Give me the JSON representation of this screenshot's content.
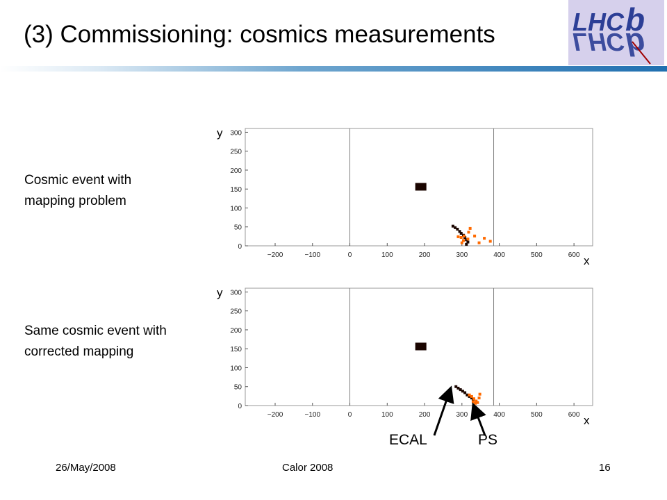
{
  "title": "(3) Commissioning: cosmics measurements",
  "colors": {
    "ecal_hit": "#1a0500",
    "ps_hit": "#ff6a00",
    "frame": "#999999",
    "accent": "#1f6fb0",
    "logo_bg": "#d6d0ec",
    "logo_text": "#2c3e96"
  },
  "logo": {
    "text": "LHCb"
  },
  "captions": {
    "top": [
      "Cosmic event with",
      "mapping problem"
    ],
    "bottom": [
      "Same cosmic event with",
      "corrected mapping"
    ]
  },
  "axis_letters": {
    "x": "x",
    "y": "y"
  },
  "annotations": {
    "ecal": "ECAL",
    "ps": "PS"
  },
  "footer": {
    "date": "26/May/2008",
    "conference": "Calor 2008",
    "page": "16"
  },
  "chart_data": [
    {
      "type": "scatter",
      "xlabel": "x",
      "ylabel": "y",
      "xlim": [
        -280,
        650
      ],
      "ylim": [
        0,
        310
      ],
      "xticks": [
        -200,
        -100,
        0,
        100,
        200,
        300,
        400,
        500,
        600
      ],
      "yticks": [
        0,
        50,
        100,
        150,
        200,
        250,
        300
      ],
      "vlines": [
        0,
        385
      ],
      "series": [
        {
          "color": "#1a0500",
          "points": [
            [
              190,
              156
            ],
            [
              276,
              52
            ],
            [
              282,
              48
            ],
            [
              288,
              44
            ],
            [
              294,
              38
            ],
            [
              298,
              33
            ],
            [
              304,
              28
            ],
            [
              308,
              22
            ],
            [
              312,
              16
            ],
            [
              316,
              10
            ],
            [
              312,
              4
            ]
          ],
          "big": [
            [
              190,
              156
            ]
          ]
        },
        {
          "color": "#ff6a00",
          "points": [
            [
              290,
              24
            ],
            [
              298,
              22
            ],
            [
              306,
              26
            ],
            [
              300,
              8
            ],
            [
              316,
              18
            ],
            [
              318,
              36
            ],
            [
              322,
              46
            ],
            [
              334,
              26
            ],
            [
              346,
              8
            ],
            [
              360,
              20
            ],
            [
              376,
              12
            ],
            [
              304,
              14
            ]
          ]
        }
      ]
    },
    {
      "type": "scatter",
      "xlabel": "x",
      "ylabel": "y",
      "xlim": [
        -280,
        650
      ],
      "ylim": [
        0,
        310
      ],
      "xticks": [
        -200,
        -100,
        0,
        100,
        200,
        300,
        400,
        500,
        600
      ],
      "yticks": [
        0,
        50,
        100,
        150,
        200,
        250,
        300
      ],
      "vlines": [
        0,
        385
      ],
      "series": [
        {
          "color": "#1a0500",
          "points": [
            [
              190,
              156
            ],
            [
              284,
              50
            ],
            [
              290,
              46
            ],
            [
              296,
              42
            ],
            [
              302,
              38
            ],
            [
              308,
              34
            ],
            [
              314,
              28
            ],
            [
              320,
              24
            ],
            [
              326,
              20
            ],
            [
              330,
              16
            ]
          ],
          "big": [
            [
              190,
              156
            ]
          ]
        },
        {
          "color": "#ff6a00",
          "points": [
            [
              320,
              28
            ],
            [
              326,
              24
            ],
            [
              332,
              18
            ],
            [
              338,
              12
            ],
            [
              330,
              10
            ],
            [
              336,
              6
            ],
            [
              342,
              8
            ],
            [
              346,
              20
            ],
            [
              348,
              30
            ]
          ]
        }
      ]
    }
  ]
}
